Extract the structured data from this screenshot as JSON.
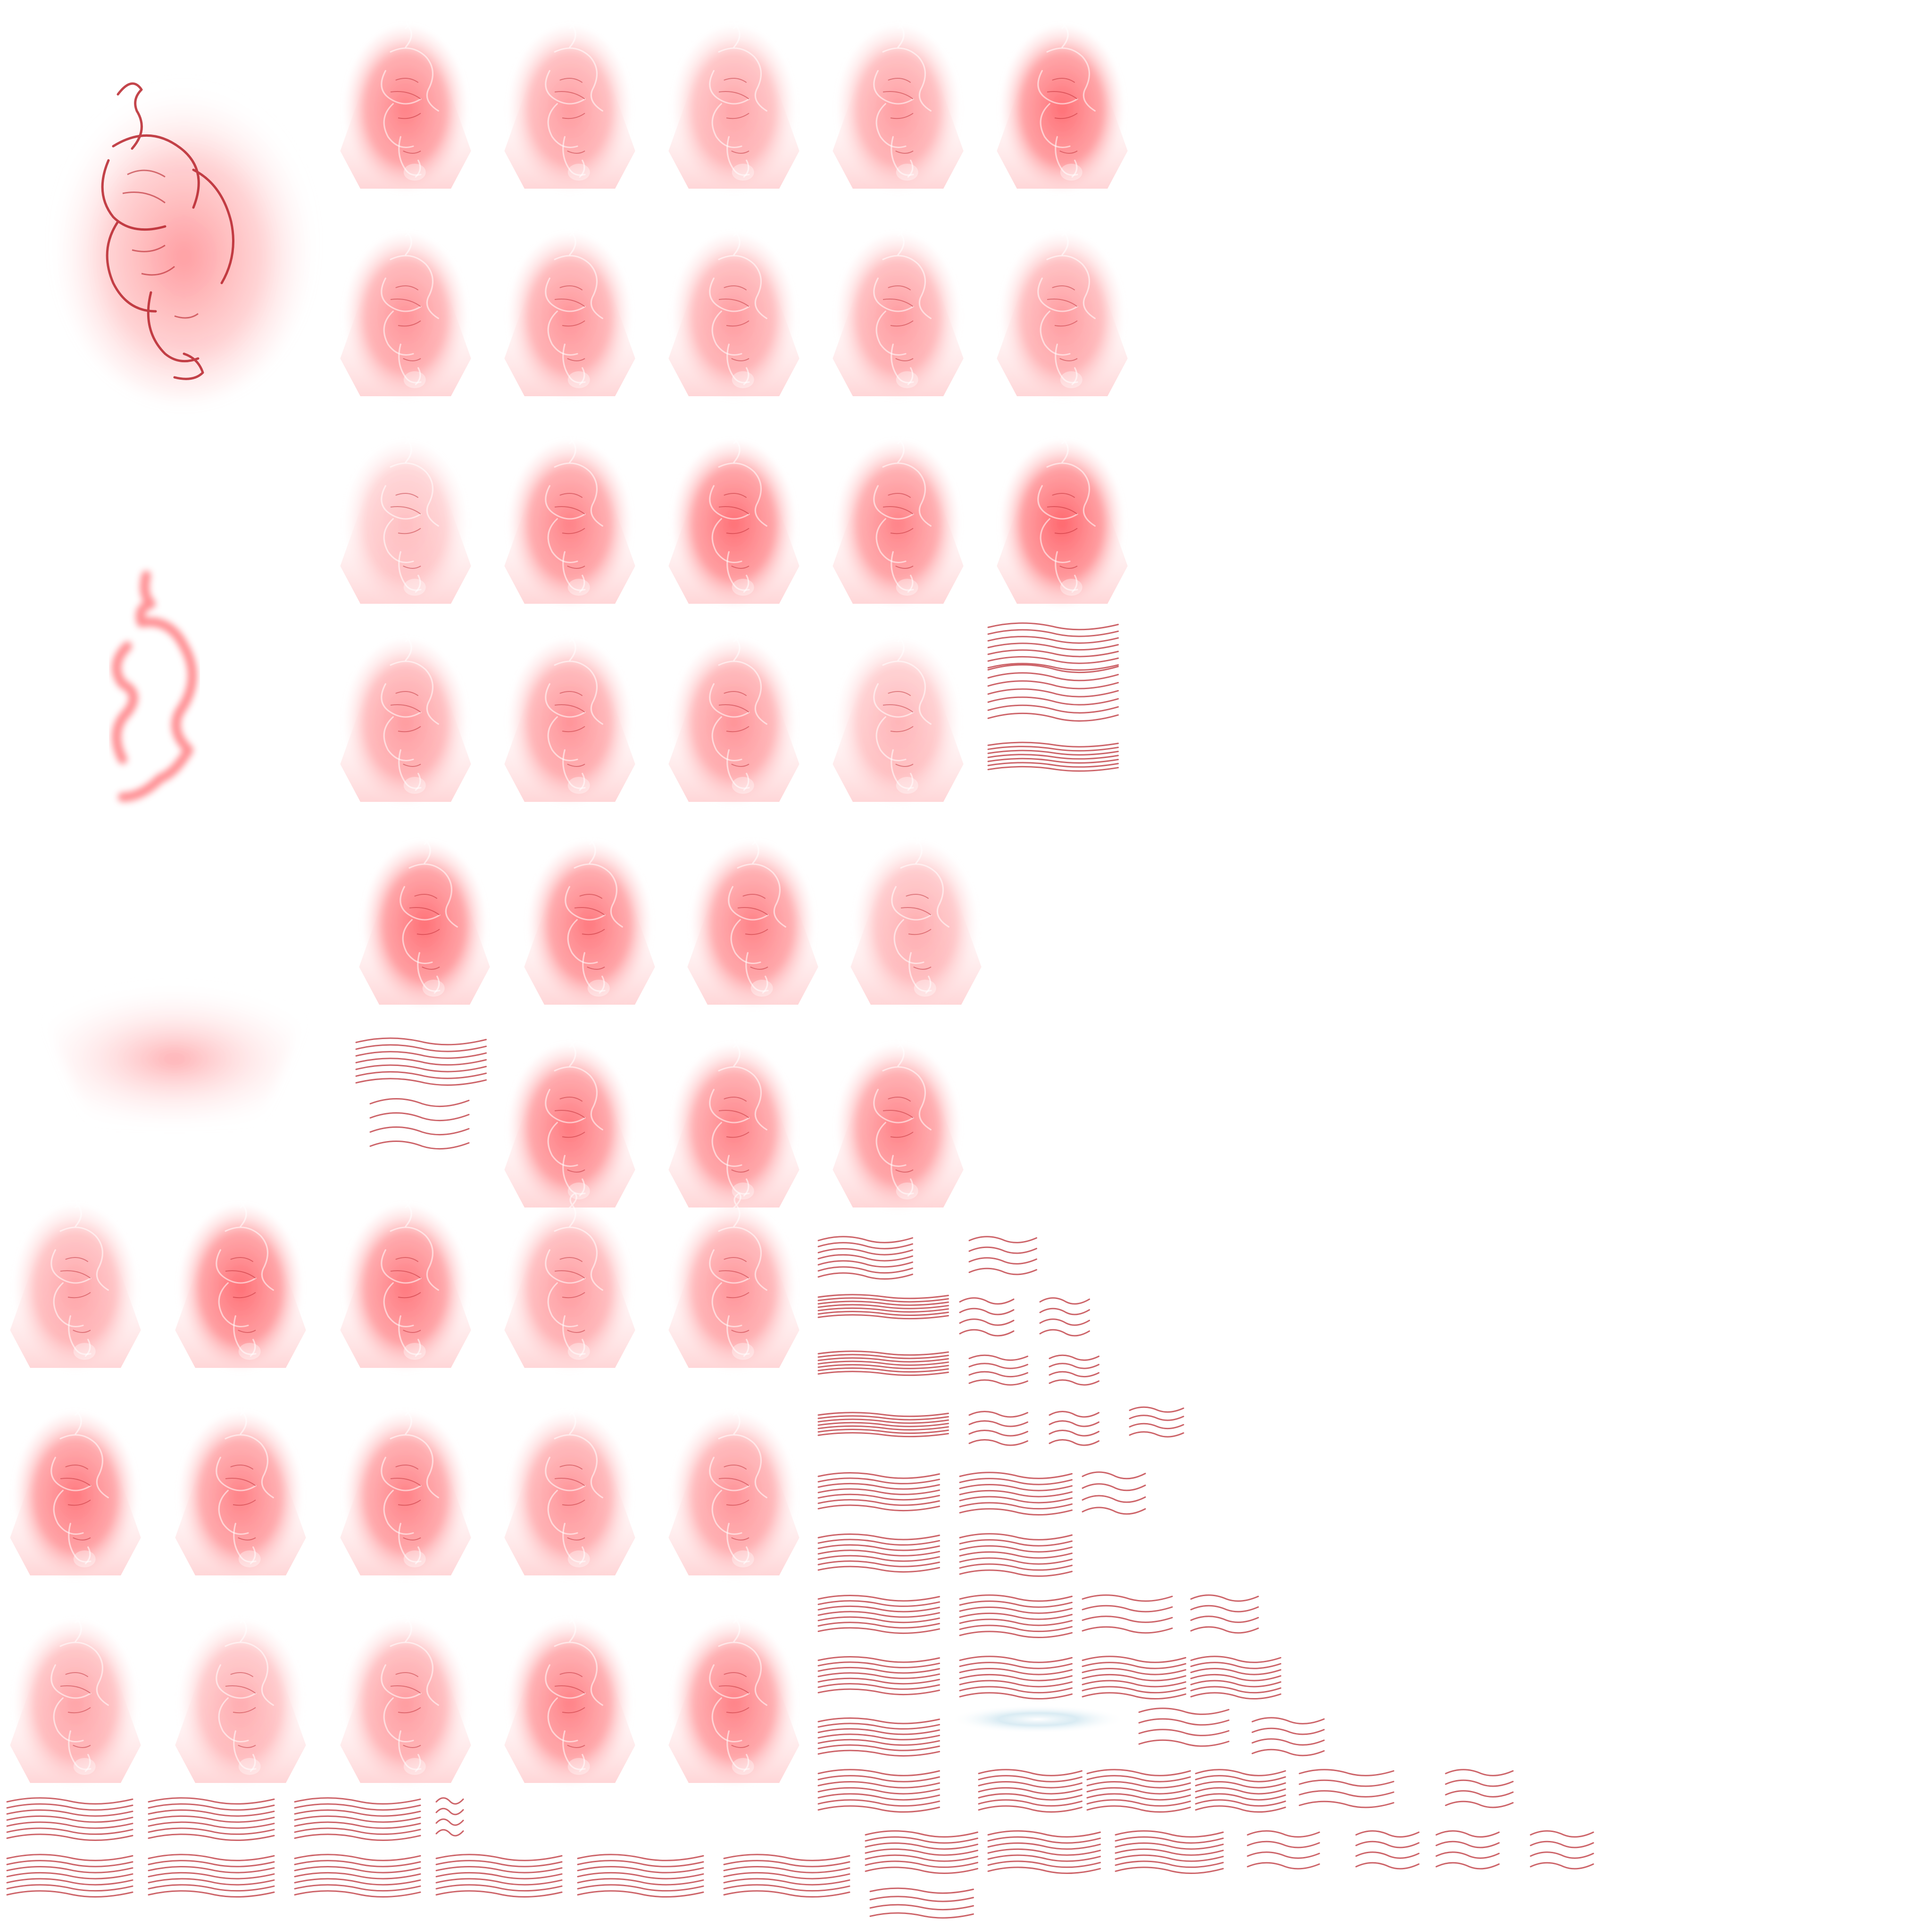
{
  "atlas": {
    "kind": "texture sprite sheet",
    "subject": "red tiger",
    "background_color": "#ffffff",
    "accent_color": "#ff4d55",
    "glow_color": "#ff6b70",
    "line_color": "#b8242c",
    "highlight_color": "#cfe6f0",
    "frame_rows": [
      5,
      5,
      5,
      5,
      4,
      3,
      5,
      5,
      5
    ],
    "frame_count": 42,
    "icons": [
      "tiger-sprite",
      "tiger-outline-glow",
      "trapezoid-glow",
      "stripe-fragment",
      "shine-streak"
    ]
  }
}
